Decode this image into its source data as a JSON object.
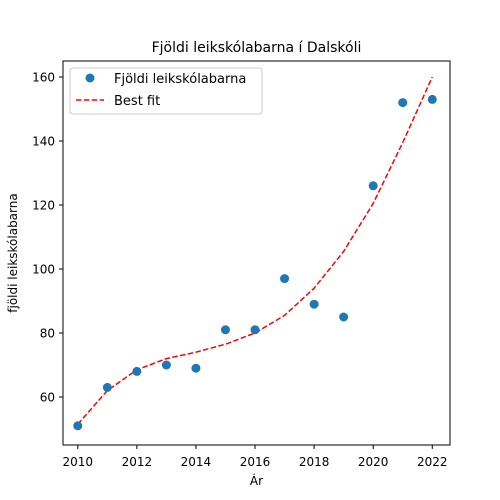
{
  "chart_data": {
    "type": "scatter",
    "title": "Fjöldi leikskólabarna í Dalskóli",
    "xlabel": "Ár",
    "ylabel": "fjöldi leikskólabarna",
    "xlim": [
      2009.5,
      2022.6
    ],
    "ylim": [
      45,
      165
    ],
    "xticks": [
      2010,
      2012,
      2014,
      2016,
      2018,
      2020,
      2022
    ],
    "yticks": [
      60,
      80,
      100,
      120,
      140,
      160
    ],
    "grid": false,
    "legend_position": "upper-left",
    "series": [
      {
        "name": "Fjöldi leikskólabarna",
        "kind": "scatter",
        "color": "#1f77b4",
        "x": [
          2010,
          2011,
          2012,
          2013,
          2014,
          2015,
          2016,
          2017,
          2018,
          2019,
          2020,
          2021,
          2022
        ],
        "y": [
          51,
          63,
          68,
          70,
          69,
          81,
          81,
          97,
          89,
          85,
          126,
          152,
          153
        ]
      },
      {
        "name": "Best fit",
        "kind": "line",
        "style": "dashed",
        "color": "#ff0000",
        "x": [
          2010,
          2011,
          2012,
          2013,
          2014,
          2015,
          2016,
          2017,
          2018,
          2019,
          2020,
          2021,
          2022
        ],
        "y": [
          51.5,
          62,
          68.5,
          72,
          74,
          76.5,
          80,
          85.5,
          94,
          105.5,
          120.5,
          139.5,
          160
        ]
      }
    ]
  }
}
